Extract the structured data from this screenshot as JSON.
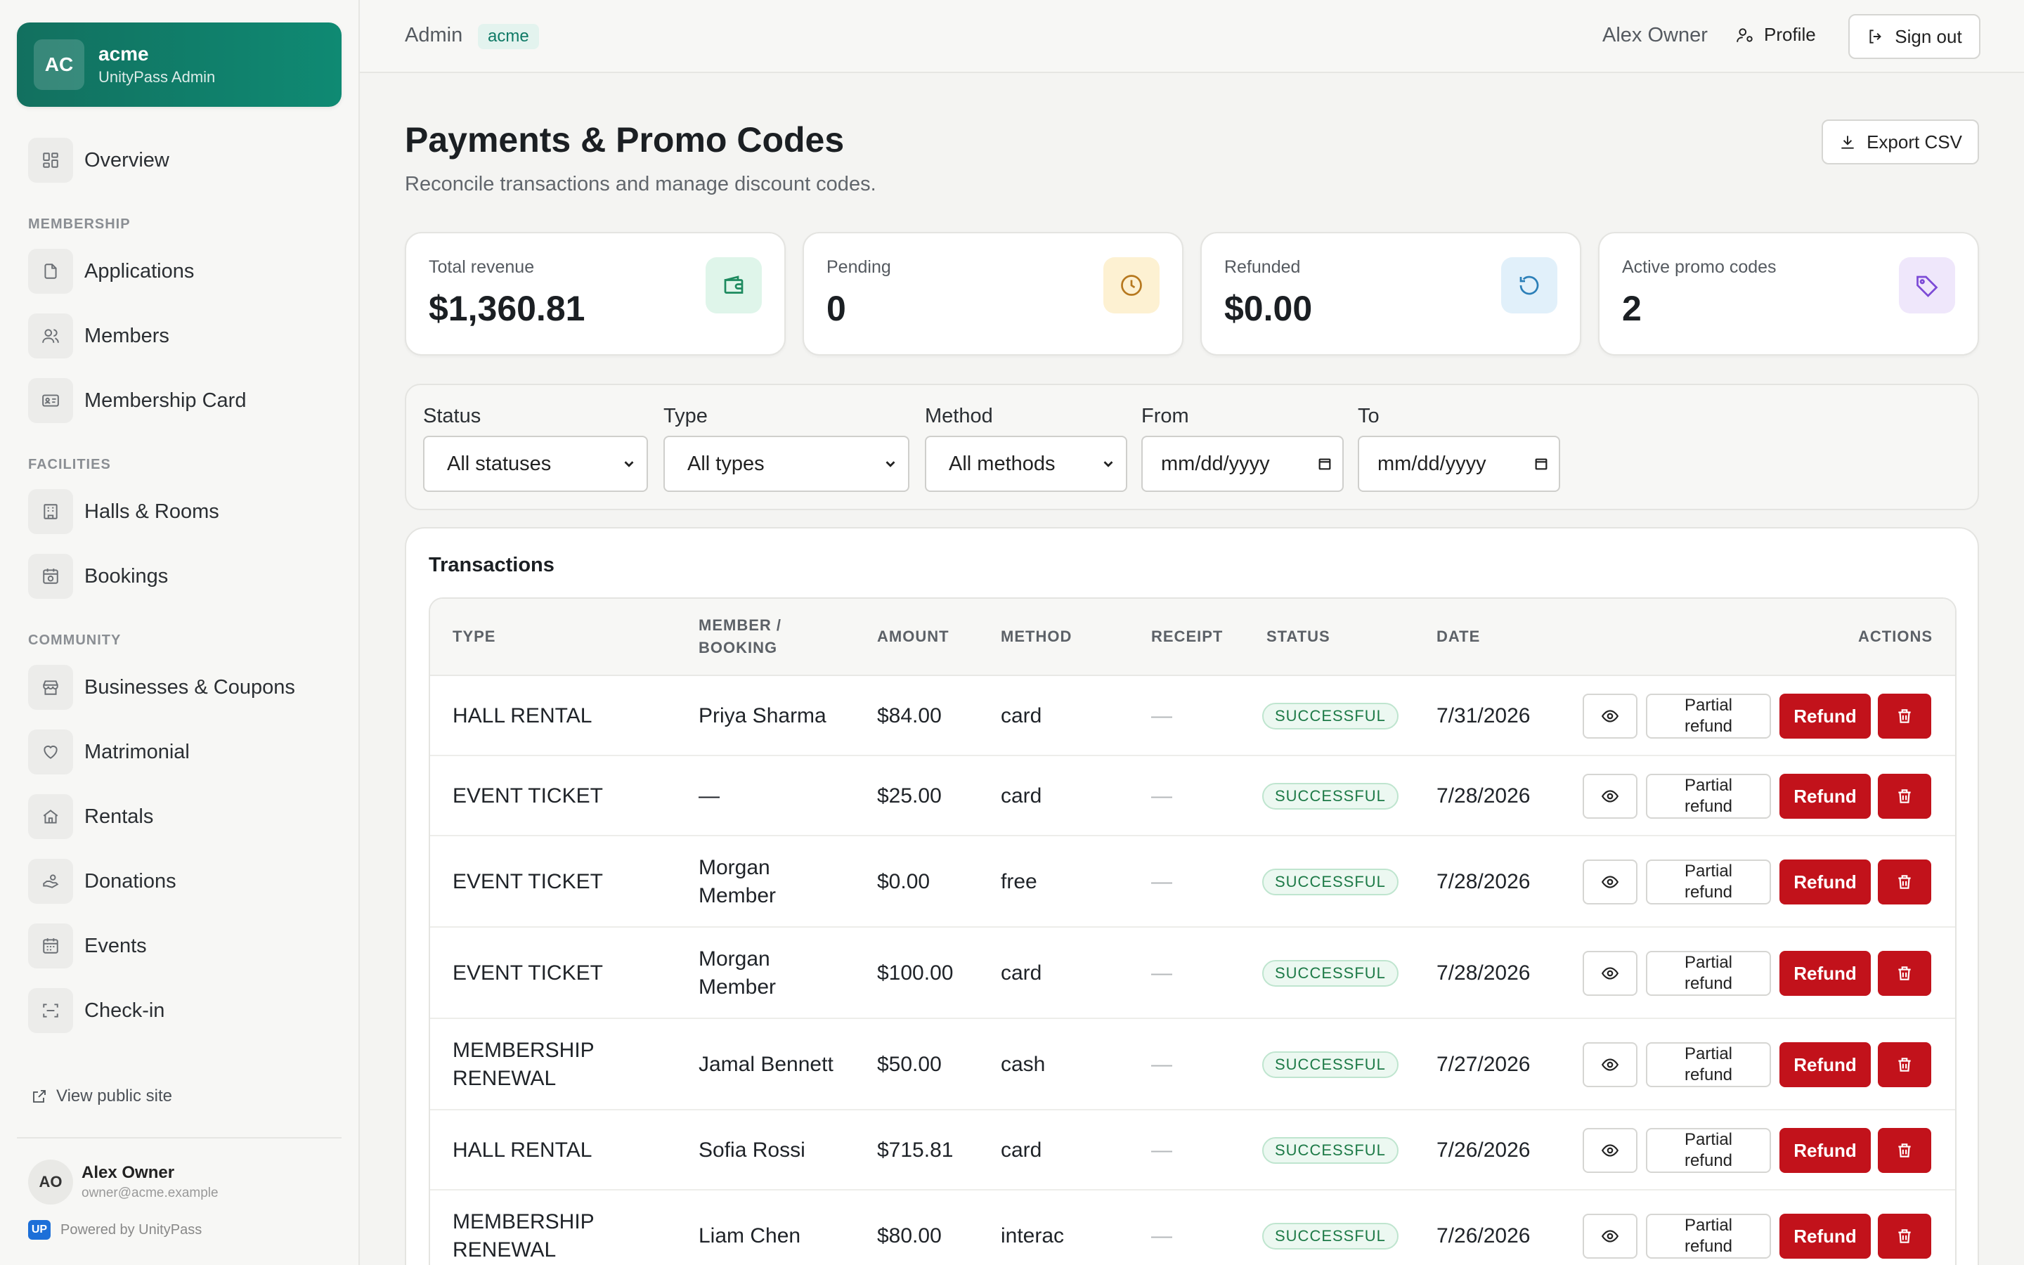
{
  "brand": {
    "initials": "AC",
    "name": "acme",
    "subtitle": "UnityPass Admin"
  },
  "sidebar": {
    "overview": "Overview",
    "sections": [
      {
        "title": "MEMBERSHIP",
        "items": [
          "Applications",
          "Members",
          "Membership Card"
        ]
      },
      {
        "title": "FACILITIES",
        "items": [
          "Halls & Rooms",
          "Bookings"
        ]
      },
      {
        "title": "COMMUNITY",
        "items": [
          "Businesses & Coupons",
          "Matrimonial",
          "Rentals",
          "Donations",
          "Events",
          "Check-in"
        ]
      }
    ],
    "view_public": "View public site",
    "user": {
      "initials": "AO",
      "name": "Alex Owner",
      "email": "owner@acme.example"
    },
    "powered": "Powered by UnityPass",
    "powered_logo": "UP"
  },
  "topbar": {
    "crumb": "Admin",
    "tenant": "acme",
    "user": "Alex Owner",
    "profile": "Profile",
    "signout": "Sign out"
  },
  "page": {
    "title": "Payments & Promo Codes",
    "subtitle": "Reconcile transactions and manage discount codes.",
    "export": "Export CSV"
  },
  "stats": [
    {
      "label": "Total revenue",
      "value": "$1,360.81",
      "icon": "wallet-icon",
      "color": "#1d8a5f",
      "bg": "#dff5ea"
    },
    {
      "label": "Pending",
      "value": "0",
      "icon": "clock-icon",
      "color": "#b7791f",
      "bg": "#fdf1d2"
    },
    {
      "label": "Refunded",
      "value": "$0.00",
      "icon": "refresh-icon",
      "color": "#2b7fb8",
      "bg": "#e1f0fa"
    },
    {
      "label": "Active promo codes",
      "value": "2",
      "icon": "tag-icon",
      "color": "#7c4ad6",
      "bg": "#efe7fb"
    }
  ],
  "filters": {
    "status": {
      "label": "Status",
      "value": "All statuses"
    },
    "type": {
      "label": "Type",
      "value": "All types"
    },
    "method": {
      "label": "Method",
      "value": "All methods"
    },
    "from": {
      "label": "From",
      "placeholder": "mm/dd/yyyy"
    },
    "to": {
      "label": "To",
      "placeholder": "mm/dd/yyyy"
    }
  },
  "transactions": {
    "title": "Transactions",
    "columns": {
      "type": "TYPE",
      "member_1": "MEMBER /",
      "member_2": "BOOKING",
      "amount": "AMOUNT",
      "method": "METHOD",
      "receipt": "RECEIPT",
      "status": "STATUS",
      "date": "DATE",
      "actions": "ACTIONS"
    },
    "action_labels": {
      "partial_1": "Partial",
      "partial_2": "refund",
      "refund": "Refund"
    },
    "rows": [
      {
        "type_1": "HALL RENTAL",
        "type_2": "",
        "member_1": "Priya Sharma",
        "member_2": "",
        "amount": "$84.00",
        "method": "card",
        "receipt": "—",
        "status": "SUCCESSFUL",
        "date": "7/31/2026"
      },
      {
        "type_1": "EVENT TICKET",
        "type_2": "",
        "member_1": "—",
        "member_2": "",
        "amount": "$25.00",
        "method": "card",
        "receipt": "—",
        "status": "SUCCESSFUL",
        "date": "7/28/2026"
      },
      {
        "type_1": "EVENT TICKET",
        "type_2": "",
        "member_1": "Morgan",
        "member_2": "Member",
        "amount": "$0.00",
        "method": "free",
        "receipt": "—",
        "status": "SUCCESSFUL",
        "date": "7/28/2026"
      },
      {
        "type_1": "EVENT TICKET",
        "type_2": "",
        "member_1": "Morgan",
        "member_2": "Member",
        "amount": "$100.00",
        "method": "card",
        "receipt": "—",
        "status": "SUCCESSFUL",
        "date": "7/28/2026"
      },
      {
        "type_1": "MEMBERSHIP",
        "type_2": "RENEWAL",
        "member_1": "Jamal Bennett",
        "member_2": "",
        "amount": "$50.00",
        "method": "cash",
        "receipt": "—",
        "status": "SUCCESSFUL",
        "date": "7/27/2026"
      },
      {
        "type_1": "HALL RENTAL",
        "type_2": "",
        "member_1": "Sofia Rossi",
        "member_2": "",
        "amount": "$715.81",
        "method": "card",
        "receipt": "—",
        "status": "SUCCESSFUL",
        "date": "7/26/2026"
      },
      {
        "type_1": "MEMBERSHIP",
        "type_2": "RENEWAL",
        "member_1": "Liam Chen",
        "member_2": "",
        "amount": "$80.00",
        "method": "interac",
        "receipt": "—",
        "status": "SUCCESSFUL",
        "date": "7/26/2026"
      }
    ]
  }
}
